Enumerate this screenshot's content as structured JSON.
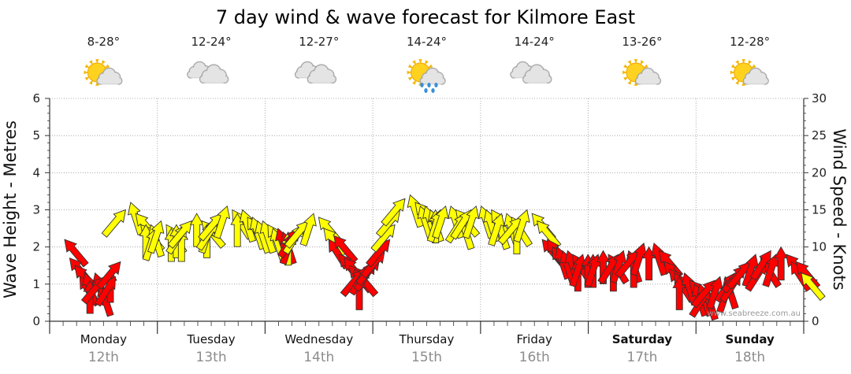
{
  "title": "7 day wind & wave forecast for Kilmore East",
  "watermark": "www.seabreeze.com.au",
  "days": [
    {
      "name": "Monday",
      "date": "12th",
      "temp": "8-28°",
      "weather_icon": "sun-cloud-icon",
      "bold": false
    },
    {
      "name": "Tuesday",
      "date": "13th",
      "temp": "12-24°",
      "weather_icon": "cloud-icon",
      "bold": false
    },
    {
      "name": "Wednesday",
      "date": "14th",
      "temp": "12-27°",
      "weather_icon": "cloud-icon",
      "bold": false
    },
    {
      "name": "Thursday",
      "date": "15th",
      "temp": "14-24°",
      "weather_icon": "sun-cloud-rain-icon",
      "bold": false
    },
    {
      "name": "Friday",
      "date": "16th",
      "temp": "14-24°",
      "weather_icon": "cloud-icon",
      "bold": false
    },
    {
      "name": "Saturday",
      "date": "17th",
      "temp": "13-26°",
      "weather_icon": "sun-cloud-icon",
      "bold": true
    },
    {
      "name": "Sunday",
      "date": "18th",
      "temp": "12-28°",
      "weather_icon": "sun-cloud-icon",
      "bold": true
    }
  ],
  "colors": {
    "light_wind": "#ffff00",
    "strong_wind": "#ff0000",
    "grid": "#999999"
  },
  "chart_data": {
    "type": "line",
    "ylabel_left": "Wave Height - Metres",
    "ylabel_right": "Wind Speed - Knots",
    "y_left_range": [
      0,
      6
    ],
    "y_right_range": [
      0,
      30
    ],
    "y_left_ticks": [
      "0",
      "1",
      "2",
      "3",
      "4",
      "5",
      "6"
    ],
    "y_right_ticks": [
      "0",
      "5",
      "10",
      "15",
      "20",
      "25",
      "30"
    ],
    "grid": true,
    "series": [
      {
        "axis": "right",
        "values": [
          11,
          8.5,
          7.5,
          6,
          6.5,
          5.5,
          6.5,
          5,
          6,
          7,
          6,
          8,
          15,
          16,
          14.5,
          13,
          13,
          13,
          12.5,
          13.5,
          13,
          12.5,
          13,
          12.5,
          13,
          13.5,
          14.5,
          13.5,
          13,
          13.5,
          13.5,
          14.5,
          15.5,
          15,
          14.5,
          15,
          14,
          14,
          13.5,
          13.5,
          13,
          12.5,
          12.5,
          12,
          12,
          12,
          12.5,
          13,
          13.5,
          14.5,
          14,
          12.5,
          11,
          11.5,
          9,
          8.5,
          7.5,
          7,
          6,
          7,
          7.5,
          8,
          8.5,
          9.5,
          11,
          13,
          15,
          16.5,
          17,
          16,
          15.5,
          15.5,
          15,
          15,
          15,
          15.5,
          15.5,
          15,
          14,
          14.5,
          15,
          15.5,
          15.5,
          15,
          15,
          14,
          14.5,
          14.5,
          14,
          13.5,
          14,
          15,
          14.5,
          13.5,
          11,
          11,
          10,
          10,
          9.5,
          9.5,
          9,
          8.5,
          9,
          9,
          9,
          9,
          9.5,
          9,
          8.5,
          9,
          9.5,
          9.5,
          9,
          9.5,
          10.5,
          10,
          10.5,
          9.5,
          8,
          7,
          6.5,
          6,
          6.5,
          5.5,
          5,
          5,
          4.5,
          4.5,
          5.5,
          6,
          6,
          5.5,
          6.5,
          6.5,
          7.5,
          8,
          9,
          8.5,
          8,
          9.5,
          9,
          10,
          9,
          8,
          8,
          6.5
        ],
        "strength": [
          "strong",
          "strong",
          "strong",
          "strong",
          "strong",
          "strong",
          "strong",
          "strong",
          "strong",
          "strong",
          "strong",
          "strong",
          "light",
          "light",
          "light",
          "light",
          "light",
          "light",
          "light",
          "light",
          "light",
          "light",
          "light",
          "light",
          "light",
          "light",
          "light",
          "light",
          "light",
          "light",
          "light",
          "light",
          "light",
          "light",
          "light",
          "light",
          "light",
          "light",
          "light",
          "light",
          "light",
          "light",
          "strong",
          "strong",
          "light",
          "strong",
          "strong",
          "light",
          "light",
          "light",
          "light",
          "light",
          "strong",
          "strong",
          "strong",
          "strong",
          "strong",
          "strong",
          "strong",
          "strong",
          "strong",
          "strong",
          "strong",
          "strong",
          "strong",
          "light",
          "light",
          "light",
          "light",
          "light",
          "light",
          "light",
          "light",
          "light",
          "light",
          "light",
          "light",
          "light",
          "light",
          "light",
          "light",
          "light",
          "light",
          "light",
          "light",
          "light",
          "light",
          "light",
          "light",
          "light",
          "light",
          "light",
          "light",
          "light",
          "strong",
          "strong",
          "strong",
          "strong",
          "strong",
          "strong",
          "strong",
          "strong",
          "strong",
          "strong",
          "strong",
          "strong",
          "strong",
          "strong",
          "strong",
          "strong",
          "strong",
          "strong",
          "strong",
          "strong",
          "strong",
          "strong",
          "strong",
          "strong",
          "strong",
          "strong",
          "strong",
          "strong",
          "strong",
          "strong",
          "strong",
          "strong",
          "strong",
          "strong",
          "strong",
          "strong",
          "strong",
          "strong",
          "strong",
          "strong",
          "strong",
          "strong",
          "strong",
          "strong",
          "strong",
          "strong",
          "strong",
          "strong",
          "strong",
          "strong",
          "strong"
        ]
      }
    ]
  }
}
